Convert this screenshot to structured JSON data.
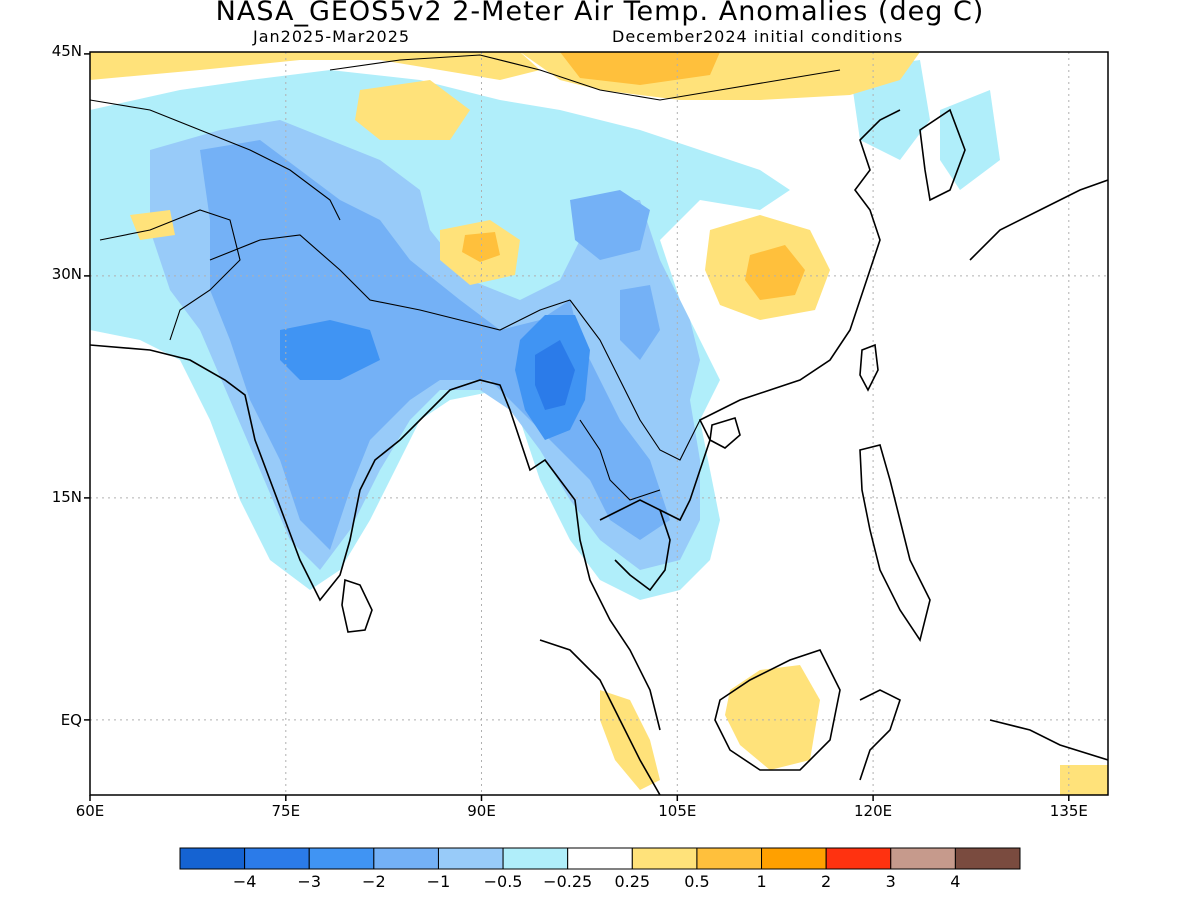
{
  "title": "NASA_GEOS5v2 2-Meter Air Temp. Anomalies (deg C)",
  "subtitle_left": "Jan2025-Mar2025",
  "subtitle_right": "December2024 initial conditions",
  "lat_labels": [
    {
      "text": "45N",
      "lat": 45
    },
    {
      "text": "30N",
      "lat": 30
    },
    {
      "text": "15N",
      "lat": 15
    },
    {
      "text": "EQ",
      "lat": 0
    }
  ],
  "lon_labels": [
    {
      "text": "60E",
      "lon": 60
    },
    {
      "text": "75E",
      "lon": 75
    },
    {
      "text": "90E",
      "lon": 90
    },
    {
      "text": "105E",
      "lon": 105
    },
    {
      "text": "120E",
      "lon": 120
    },
    {
      "text": "135E",
      "lon": 135
    }
  ],
  "extent": {
    "lon_min": 60,
    "lon_max": 138,
    "lat_min": -5,
    "lat_max": 45
  },
  "colorbar": {
    "colors": [
      "#1563d2",
      "#2b7be9",
      "#4094f3",
      "#74b1f6",
      "#98cbf9",
      "#b0eefa",
      "#ffffff",
      "#ffe27a",
      "#ffc03c",
      "#ffa000",
      "#ff3210",
      "#c69a8c",
      "#7a4b3f"
    ],
    "labels": [
      "−4",
      "−3",
      "−2",
      "−1",
      "−0.5",
      "−0.25",
      "0.25",
      "0.5",
      "1",
      "2",
      "3",
      "4"
    ]
  },
  "colors": {
    "strong_cold": "#2b7be9",
    "cold": "#74b1f6",
    "cool": "#98cbf9",
    "slight_cool": "#b0eefa",
    "slight_warm": "#ffe27a",
    "warm": "#ffc03c",
    "very_warm": "#ffa000"
  }
}
